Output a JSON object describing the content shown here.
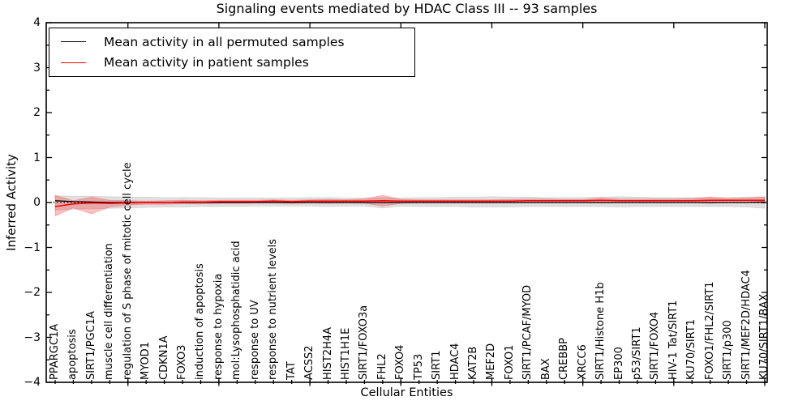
{
  "chart_data": {
    "type": "line",
    "title": "Signaling events mediated by HDAC Class III -- 93 samples",
    "xlabel": "Cellular Entities",
    "ylabel": "Inferred Activity",
    "ylim": [
      -4,
      4
    ],
    "y_ticks": [
      -4,
      -3,
      -2,
      -1,
      0,
      1,
      2,
      3,
      4
    ],
    "y_tick_labels": [
      "−4",
      "−3",
      "−2",
      "−1",
      "0",
      "1",
      "2",
      "3",
      "4"
    ],
    "x_major_tick_indices": [
      4,
      9,
      14,
      19,
      24,
      29,
      34,
      39
    ],
    "grid": false,
    "categories": [
      "PPARGC1A",
      "apoptosis",
      "SIRT1/PGC1A",
      "muscle cell differentiation",
      "regulation of S phase of mitotic cell cycle",
      "MYOD1",
      "CDKN1A",
      "FOXO3",
      "induction of apoptosis",
      "response to hypoxia",
      "mol:Lysophosphatidic acid",
      "response to UV",
      "response to nutrient levels",
      "TAT",
      "ACSS2",
      "HIST2H4A",
      "HIST1H1E",
      "SIRT1/FOXO3a",
      "FHL2",
      "FOXO4",
      "TP53",
      "SIRT1",
      "HDAC4",
      "KAT2B",
      "MEF2D",
      "FOXO1",
      "SIRT1/PCAF/MYOD",
      "BAX",
      "CREBBP",
      "XRCC6",
      "SIRT1/Histone H1b",
      "EP300",
      "p53/SIRT1",
      "SIRT1/FOXO4",
      "HIV-1 Tat/SIRT1",
      "KU70/SIRT1",
      "FOXO1/FHL2/SIRT1",
      "SIRT1/p300",
      "SIRT1/MEF2D/HDAC4",
      "KU70/SIRT1/BAX"
    ],
    "series": [
      {
        "name": "Mean activity in all permuted samples",
        "color": "#000000",
        "values": [
          0.04,
          0.02,
          0.01,
          0,
          0,
          0,
          0,
          0,
          0,
          0,
          0,
          0,
          0,
          0,
          0,
          0,
          0,
          0,
          0,
          0,
          0,
          0,
          0,
          0,
          0,
          0,
          0,
          0,
          0,
          0,
          0,
          0,
          0,
          0,
          0,
          0,
          0,
          0,
          0,
          0.01
        ]
      },
      {
        "name": "Mean activity in patient samples",
        "color": "#ff0000",
        "values": [
          -0.09,
          -0.03,
          -0.01,
          -0.02,
          -0.01,
          0,
          0,
          0.01,
          0.01,
          0.02,
          0.02,
          0.02,
          0.03,
          0.02,
          0.03,
          0.03,
          0.03,
          0.03,
          0.04,
          0.03,
          0.03,
          0.03,
          0.03,
          0.03,
          0.03,
          0.03,
          0.04,
          0.04,
          0.04,
          0.04,
          0.05,
          0.04,
          0.04,
          0.04,
          0.04,
          0.04,
          0.05,
          0.05,
          0.05,
          0.05
        ]
      }
    ],
    "bands": [
      {
        "name": "permuted-samples-std-band",
        "color": "#000000",
        "opacity": 0.12,
        "upper": [
          0.15,
          0.14,
          0.14,
          0.13,
          0.12,
          0.12,
          0.11,
          0.11,
          0.11,
          0.1,
          0.1,
          0.1,
          0.1,
          0.1,
          0.11,
          0.11,
          0.1,
          0.1,
          0.11,
          0.1,
          0.11,
          0.11,
          0.12,
          0.12,
          0.13,
          0.12,
          0.12,
          0.11,
          0.11,
          0.11,
          0.12,
          0.13,
          0.12,
          0.11,
          0.11,
          0.11,
          0.11,
          0.11,
          0.12,
          0.13
        ],
        "lower": [
          -0.17,
          -0.15,
          -0.14,
          -0.13,
          -0.12,
          -0.11,
          -0.1,
          -0.1,
          -0.09,
          -0.09,
          -0.09,
          -0.08,
          -0.08,
          -0.08,
          -0.08,
          -0.09,
          -0.08,
          -0.08,
          -0.12,
          -0.08,
          -0.09,
          -0.09,
          -0.09,
          -0.1,
          -0.1,
          -0.1,
          -0.09,
          -0.09,
          -0.09,
          -0.09,
          -0.09,
          -0.1,
          -0.09,
          -0.09,
          -0.09,
          -0.09,
          -0.09,
          -0.09,
          -0.1,
          -0.13
        ]
      },
      {
        "name": "patient-samples-std-band",
        "color": "#ff0000",
        "opacity": 0.25,
        "upper": [
          0.16,
          0.04,
          0.12,
          0.05,
          0.04,
          0.03,
          0.04,
          0.05,
          0.04,
          0.05,
          0.05,
          0.05,
          0.06,
          0.05,
          0.06,
          0.07,
          0.06,
          0.08,
          0.16,
          0.07,
          0.06,
          0.06,
          0.06,
          0.06,
          0.06,
          0.07,
          0.08,
          0.08,
          0.07,
          0.07,
          0.1,
          0.08,
          0.08,
          0.08,
          0.08,
          0.09,
          0.12,
          0.09,
          0.1,
          0.12
        ],
        "lower": [
          -0.3,
          -0.12,
          -0.25,
          -0.1,
          -0.06,
          -0.04,
          -0.04,
          -0.03,
          -0.03,
          -0.02,
          -0.02,
          -0.01,
          -0.01,
          -0.02,
          -0.01,
          -0.02,
          -0.01,
          -0.02,
          -0.08,
          -0.02,
          -0.01,
          -0.01,
          -0.01,
          -0.01,
          -0.01,
          -0.01,
          0,
          0,
          0,
          0,
          -0.01,
          0,
          0,
          0,
          0,
          0,
          -0.02,
          0,
          0,
          -0.02
        ]
      }
    ],
    "zero_line": {
      "y": 0,
      "style": "dotted",
      "color": "#000000"
    },
    "legend": {
      "position": "upper left",
      "entries": [
        {
          "label": "Mean activity in all permuted samples",
          "color": "#000000"
        },
        {
          "label": "Mean activity in patient samples",
          "color": "#ff0000"
        }
      ]
    }
  },
  "colors": {
    "background": "#ffffff",
    "axis": "#000000",
    "permuted_line": "#000000",
    "patient_line": "#ff0000"
  }
}
